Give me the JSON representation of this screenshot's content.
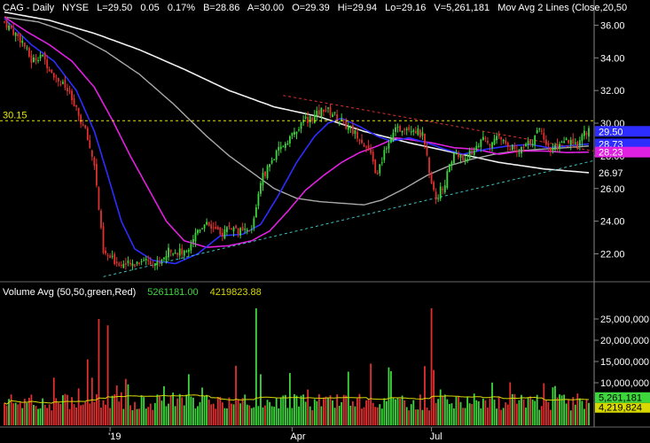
{
  "header": {
    "symbol": "CAG",
    "interval": "Daily",
    "exchange": "NYSE",
    "last": "L=29.50",
    "change": "0.05",
    "change_pct": "0.17%",
    "bid": "B=28.86",
    "ask": "A=30.00",
    "open": "O=29.39",
    "high": "Hi=29.94",
    "low": "Lo=29.16",
    "volume": "V=5,261,181",
    "study": "Mov Avg 2 Lines (Close,20,50"
  },
  "volume_header": {
    "title": "Volume Avg (50,50,green,Red)",
    "value1": "5261181.00",
    "value2": "4219823.88"
  },
  "colors": {
    "background": "#000000",
    "up": "#3dd63d",
    "down": "#e03030",
    "ma20": "#2d2dff",
    "ma50": "#e020e0",
    "ma200": "#f0f0f0",
    "ma100": "#a8a8a8",
    "hline": "#e8e800",
    "trend_up": "#40c0c0",
    "trend_down": "#e03030",
    "vol_avg": "#d8d800",
    "axis_text": "#ffffff"
  },
  "chart_data": {
    "type": "candlestick",
    "price_axis": {
      "ylim": [
        20.4,
        37.0
      ],
      "ticks": [
        "22.00",
        "24.00",
        "26.00",
        "28.00",
        "30.00",
        "32.00",
        "34.00",
        "36.00"
      ]
    },
    "volume_axis": {
      "ylim": [
        0,
        30000000
      ],
      "ticks": [
        "10,000,000",
        "15,000,000",
        "20,000,000",
        "25,000,000"
      ],
      "avg_label": "4,219,824",
      "last_label": "5,261,181"
    },
    "x_axis": {
      "ticks": [
        {
          "label": "'19",
          "index": 47
        },
        {
          "label": "Apr",
          "index": 128
        },
        {
          "label": "Jul",
          "index": 190
        }
      ]
    },
    "horizontal_line": {
      "value": 30.15,
      "label": "30.15"
    },
    "price_tags": [
      {
        "label": "29.50",
        "value": 29.5,
        "color": "#2d2dff"
      },
      {
        "label": "28.73",
        "value": 28.73,
        "color": "#2d2dff"
      },
      {
        "label": "28.23",
        "value": 28.23,
        "color": "#e020e0"
      },
      {
        "label": "26.97",
        "value": 26.97,
        "color": "#000000"
      }
    ],
    "anchors": {
      "close": [
        [
          0,
          36.2
        ],
        [
          8,
          35.0
        ],
        [
          12,
          33.8
        ],
        [
          16,
          34.2
        ],
        [
          22,
          33.0
        ],
        [
          28,
          32.0
        ],
        [
          36,
          29.5
        ],
        [
          40,
          27.5
        ],
        [
          44,
          22.0
        ],
        [
          50,
          21.5
        ],
        [
          56,
          21.3
        ],
        [
          62,
          21.7
        ],
        [
          68,
          21.4
        ],
        [
          74,
          22.3
        ],
        [
          80,
          22.0
        ],
        [
          86,
          23.5
        ],
        [
          90,
          24.0
        ],
        [
          96,
          23.1
        ],
        [
          100,
          23.7
        ],
        [
          106,
          23.3
        ],
        [
          110,
          23.4
        ],
        [
          114,
          26.5
        ],
        [
          118,
          27.5
        ],
        [
          122,
          28.3
        ],
        [
          126,
          29.0
        ],
        [
          130,
          29.5
        ],
        [
          134,
          30.2
        ],
        [
          138,
          30.4
        ],
        [
          142,
          30.9
        ],
        [
          146,
          30.6
        ],
        [
          150,
          30.1
        ],
        [
          154,
          29.6
        ],
        [
          158,
          29.2
        ],
        [
          162,
          28.3
        ],
        [
          166,
          26.8
        ],
        [
          170,
          28.7
        ],
        [
          174,
          29.5
        ],
        [
          178,
          29.8
        ],
        [
          182,
          29.7
        ],
        [
          186,
          29.2
        ],
        [
          190,
          26.5
        ],
        [
          192,
          25.4
        ],
        [
          196,
          26.4
        ],
        [
          200,
          28.2
        ],
        [
          204,
          27.8
        ],
        [
          208,
          28.2
        ],
        [
          212,
          29.0
        ],
        [
          216,
          28.7
        ],
        [
          220,
          29.1
        ],
        [
          224,
          28.8
        ],
        [
          228,
          28.1
        ],
        [
          232,
          28.6
        ],
        [
          236,
          29.1
        ],
        [
          238,
          29.8
        ],
        [
          242,
          28.5
        ],
        [
          246,
          28.4
        ],
        [
          250,
          28.9
        ],
        [
          254,
          28.6
        ],
        [
          258,
          29.4
        ],
        [
          260,
          29.5
        ]
      ],
      "ma20": [
        [
          0,
          36.4
        ],
        [
          12,
          34.8
        ],
        [
          22,
          33.8
        ],
        [
          32,
          32.0
        ],
        [
          40,
          29.5
        ],
        [
          46,
          26.8
        ],
        [
          52,
          24.0
        ],
        [
          58,
          22.3
        ],
        [
          66,
          21.6
        ],
        [
          76,
          21.4
        ],
        [
          86,
          22.0
        ],
        [
          96,
          23.1
        ],
        [
          106,
          23.2
        ],
        [
          114,
          23.8
        ],
        [
          122,
          25.6
        ],
        [
          130,
          27.6
        ],
        [
          138,
          29.2
        ],
        [
          144,
          30.0
        ],
        [
          150,
          30.3
        ],
        [
          158,
          29.8
        ],
        [
          166,
          29.2
        ],
        [
          172,
          28.9
        ],
        [
          180,
          29.1
        ],
        [
          188,
          28.8
        ],
        [
          196,
          28.4
        ],
        [
          204,
          28.1
        ],
        [
          214,
          28.4
        ],
        [
          224,
          28.6
        ],
        [
          234,
          28.7
        ],
        [
          242,
          28.5
        ],
        [
          250,
          28.6
        ],
        [
          260,
          28.73
        ]
      ],
      "ma50": [
        [
          0,
          36.5
        ],
        [
          10,
          35.6
        ],
        [
          20,
          34.8
        ],
        [
          30,
          33.8
        ],
        [
          40,
          32.2
        ],
        [
          48,
          30.2
        ],
        [
          56,
          28.0
        ],
        [
          64,
          26.0
        ],
        [
          72,
          24.0
        ],
        [
          80,
          22.8
        ],
        [
          90,
          22.4
        ],
        [
          100,
          22.5
        ],
        [
          110,
          22.8
        ],
        [
          118,
          23.4
        ],
        [
          126,
          24.6
        ],
        [
          134,
          25.9
        ],
        [
          142,
          26.8
        ],
        [
          150,
          27.6
        ],
        [
          158,
          28.2
        ],
        [
          166,
          28.6
        ],
        [
          174,
          29.1
        ],
        [
          180,
          29.0
        ],
        [
          190,
          28.8
        ],
        [
          200,
          28.5
        ],
        [
          210,
          28.4
        ],
        [
          220,
          28.1
        ],
        [
          230,
          28.3
        ],
        [
          240,
          28.3
        ],
        [
          250,
          28.2
        ],
        [
          260,
          28.23
        ]
      ],
      "ma100": [
        [
          0,
          36.5
        ],
        [
          15,
          36.2
        ],
        [
          30,
          35.5
        ],
        [
          45,
          34.4
        ],
        [
          60,
          33.0
        ],
        [
          75,
          31.2
        ],
        [
          90,
          29.2
        ],
        [
          100,
          28.0
        ],
        [
          110,
          27.0
        ],
        [
          120,
          26.0
        ],
        [
          130,
          25.4
        ],
        [
          140,
          25.2
        ],
        [
          150,
          25.1
        ],
        [
          160,
          25.0
        ],
        [
          168,
          25.3
        ],
        [
          178,
          26.0
        ],
        [
          188,
          26.8
        ],
        [
          198,
          27.4
        ],
        [
          208,
          27.8
        ],
        [
          218,
          28.1
        ],
        [
          228,
          28.3
        ],
        [
          238,
          28.4
        ],
        [
          250,
          28.5
        ],
        [
          260,
          28.6
        ]
      ],
      "ma200": [
        [
          0,
          36.8
        ],
        [
          20,
          36.3
        ],
        [
          40,
          35.5
        ],
        [
          60,
          34.5
        ],
        [
          80,
          33.3
        ],
        [
          100,
          32.0
        ],
        [
          120,
          31.0
        ],
        [
          140,
          30.4
        ],
        [
          160,
          29.5
        ],
        [
          180,
          28.8
        ],
        [
          200,
          28.2
        ],
        [
          220,
          27.6
        ],
        [
          240,
          27.2
        ],
        [
          260,
          26.97
        ]
      ]
    },
    "trend_lines": [
      {
        "name": "support",
        "from": [
          44,
          20.6
        ],
        "to": [
          262,
          27.7
        ],
        "color": "#40c0c0"
      },
      {
        "name": "resistance",
        "from": [
          124,
          31.7
        ],
        "to": [
          262,
          28.3
        ],
        "color": "#e03030"
      }
    ]
  }
}
